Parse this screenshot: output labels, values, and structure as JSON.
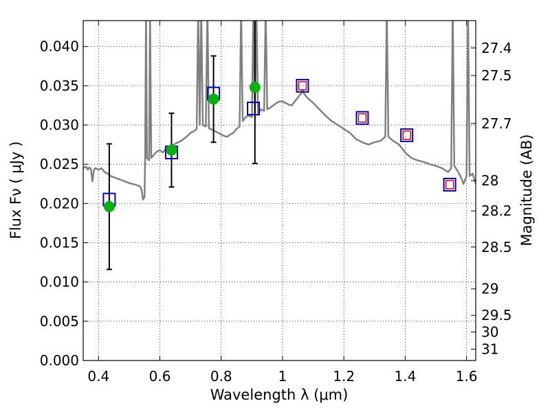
{
  "chart_data": {
    "type": "scatter",
    "xlabel": "Wavelength  λ (μm)",
    "ylabel": "Flux  Fν  ( μJy )",
    "y2label": "Magnitude (AB)",
    "xlim": [
      0.35,
      1.63
    ],
    "ylim": [
      0.0,
      0.0433
    ],
    "grid": true,
    "xticks": [
      {
        "v": 0.4,
        "label": "0.4"
      },
      {
        "v": 0.6,
        "label": "0.6"
      },
      {
        "v": 0.8,
        "label": "0.8"
      },
      {
        "v": 1.0,
        "label": "1"
      },
      {
        "v": 1.2,
        "label": "1.2"
      },
      {
        "v": 1.4,
        "label": "1.4"
      },
      {
        "v": 1.6,
        "label": "1.6"
      }
    ],
    "yticks": [
      {
        "v": 0.0,
        "label": "0.000"
      },
      {
        "v": 0.005,
        "label": "0.005"
      },
      {
        "v": 0.01,
        "label": "0.010"
      },
      {
        "v": 0.015,
        "label": "0.015"
      },
      {
        "v": 0.02,
        "label": "0.020"
      },
      {
        "v": 0.025,
        "label": "0.025"
      },
      {
        "v": 0.03,
        "label": "0.030"
      },
      {
        "v": 0.035,
        "label": "0.035"
      },
      {
        "v": 0.04,
        "label": "0.040"
      }
    ],
    "mag_ticks": [
      {
        "v": 27.4,
        "label": "27.4"
      },
      {
        "v": 27.5,
        "label": "27.5"
      },
      {
        "v": 27.7,
        "label": "27.7"
      },
      {
        "v": 28.0,
        "label": "28"
      },
      {
        "v": 28.2,
        "label": "28.2"
      },
      {
        "v": 28.5,
        "label": "28.5"
      },
      {
        "v": 29.0,
        "label": "29"
      },
      {
        "v": 29.5,
        "label": "29.5"
      },
      {
        "v": 30.0,
        "label": "30"
      },
      {
        "v": 31.0,
        "label": "31"
      }
    ],
    "colors": {
      "template": "#808080",
      "observed": "#00b400",
      "model_box": "#0000c8",
      "inner_box": "#e00000",
      "errorbar": "#000000"
    },
    "template_spectrum": [
      [
        0.35,
        0.0245
      ],
      [
        0.36,
        0.0247
      ],
      [
        0.365,
        0.0243
      ],
      [
        0.37,
        0.0246
      ],
      [
        0.375,
        0.0244
      ],
      [
        0.38,
        0.0228
      ],
      [
        0.385,
        0.0243
      ],
      [
        0.39,
        0.0245
      ],
      [
        0.4,
        0.0243
      ],
      [
        0.41,
        0.0245
      ],
      [
        0.42,
        0.024
      ],
      [
        0.43,
        0.0238
      ],
      [
        0.44,
        0.0235
      ],
      [
        0.46,
        0.0232
      ],
      [
        0.48,
        0.0229
      ],
      [
        0.5,
        0.0226
      ],
      [
        0.52,
        0.0224
      ],
      [
        0.535,
        0.0222
      ],
      [
        0.54,
        0.0218
      ],
      [
        0.545,
        0.0205
      ],
      [
        0.55,
        0.0208
      ],
      [
        0.552,
        0.0255
      ],
      [
        0.555,
        0.045
      ],
      [
        0.558,
        0.0258
      ],
      [
        0.565,
        0.0255
      ],
      [
        0.568,
        0.045
      ],
      [
        0.572,
        0.0258
      ],
      [
        0.58,
        0.0262
      ],
      [
        0.59,
        0.0266
      ],
      [
        0.6,
        0.0268
      ],
      [
        0.61,
        0.0265
      ],
      [
        0.62,
        0.027
      ],
      [
        0.63,
        0.0268
      ],
      [
        0.64,
        0.0274
      ],
      [
        0.65,
        0.0276
      ],
      [
        0.66,
        0.0278
      ],
      [
        0.67,
        0.028
      ],
      [
        0.68,
        0.0283
      ],
      [
        0.69,
        0.0286
      ],
      [
        0.7,
        0.029
      ],
      [
        0.71,
        0.0292
      ],
      [
        0.72,
        0.0295
      ],
      [
        0.725,
        0.045
      ],
      [
        0.73,
        0.03
      ],
      [
        0.735,
        0.045
      ],
      [
        0.74,
        0.03
      ],
      [
        0.75,
        0.0298
      ],
      [
        0.755,
        0.045
      ],
      [
        0.76,
        0.0296
      ],
      [
        0.77,
        0.0294
      ],
      [
        0.78,
        0.0292
      ],
      [
        0.79,
        0.029
      ],
      [
        0.8,
        0.0288
      ],
      [
        0.81,
        0.0286
      ],
      [
        0.82,
        0.0285
      ],
      [
        0.83,
        0.0288
      ],
      [
        0.84,
        0.029
      ],
      [
        0.85,
        0.0295
      ],
      [
        0.86,
        0.0298
      ],
      [
        0.865,
        0.045
      ],
      [
        0.87,
        0.0305
      ],
      [
        0.88,
        0.031
      ],
      [
        0.89,
        0.0312
      ],
      [
        0.9,
        0.031
      ],
      [
        0.905,
        0.045
      ],
      [
        0.91,
        0.031
      ],
      [
        0.915,
        0.045
      ],
      [
        0.92,
        0.0315
      ],
      [
        0.93,
        0.032
      ],
      [
        0.94,
        0.0318
      ],
      [
        0.945,
        0.045
      ],
      [
        0.95,
        0.032
      ],
      [
        0.96,
        0.0322
      ],
      [
        0.97,
        0.0325
      ],
      [
        0.98,
        0.0328
      ],
      [
        0.99,
        0.033
      ],
      [
        1.0,
        0.033
      ],
      [
        1.01,
        0.0328
      ],
      [
        1.02,
        0.0326
      ],
      [
        1.03,
        0.0325
      ],
      [
        1.04,
        0.033
      ],
      [
        1.05,
        0.0335
      ],
      [
        1.06,
        0.034
      ],
      [
        1.065,
        0.0345
      ],
      [
        1.07,
        0.034
      ],
      [
        1.08,
        0.0335
      ],
      [
        1.1,
        0.0328
      ],
      [
        1.12,
        0.032
      ],
      [
        1.14,
        0.0312
      ],
      [
        1.16,
        0.0305
      ],
      [
        1.18,
        0.03
      ],
      [
        1.2,
        0.0295
      ],
      [
        1.22,
        0.029
      ],
      [
        1.24,
        0.0282
      ],
      [
        1.26,
        0.0278
      ],
      [
        1.28,
        0.0275
      ],
      [
        1.3,
        0.0278
      ],
      [
        1.32,
        0.028
      ],
      [
        1.335,
        0.0285
      ],
      [
        1.34,
        0.045
      ],
      [
        1.345,
        0.0285
      ],
      [
        1.36,
        0.028
      ],
      [
        1.38,
        0.0275
      ],
      [
        1.4,
        0.0265
      ],
      [
        1.42,
        0.0258
      ],
      [
        1.44,
        0.0255
      ],
      [
        1.46,
        0.0253
      ],
      [
        1.48,
        0.025
      ],
      [
        1.5,
        0.0248
      ],
      [
        1.52,
        0.0245
      ],
      [
        1.54,
        0.024
      ],
      [
        1.55,
        0.0245
      ],
      [
        1.555,
        0.045
      ],
      [
        1.56,
        0.0248
      ],
      [
        1.57,
        0.0242
      ],
      [
        1.58,
        0.0235
      ],
      [
        1.59,
        0.0225
      ],
      [
        1.6,
        0.0235
      ],
      [
        1.605,
        0.045
      ],
      [
        1.61,
        0.0235
      ],
      [
        1.62,
        0.0238
      ],
      [
        1.63,
        0.0225
      ]
    ],
    "observed_points": [
      {
        "x": 0.435,
        "y": 0.0196,
        "err": 0.008
      },
      {
        "x": 0.638,
        "y": 0.0268,
        "err": 0.0047
      },
      {
        "x": 0.775,
        "y": 0.0333,
        "err": 0.0055
      },
      {
        "x": 0.91,
        "y": 0.0348,
        "err": 0.0097
      }
    ],
    "model_points": [
      {
        "x": 0.435,
        "y": 0.0205,
        "inner": false
      },
      {
        "x": 0.638,
        "y": 0.0265,
        "inner": false
      },
      {
        "x": 0.775,
        "y": 0.034,
        "inner": false
      },
      {
        "x": 0.905,
        "y": 0.0321,
        "inner": false
      },
      {
        "x": 1.065,
        "y": 0.035,
        "inner": true
      },
      {
        "x": 1.26,
        "y": 0.0309,
        "inner": true
      },
      {
        "x": 1.405,
        "y": 0.0287,
        "inner": true
      },
      {
        "x": 1.545,
        "y": 0.0224,
        "inner": true
      }
    ]
  }
}
